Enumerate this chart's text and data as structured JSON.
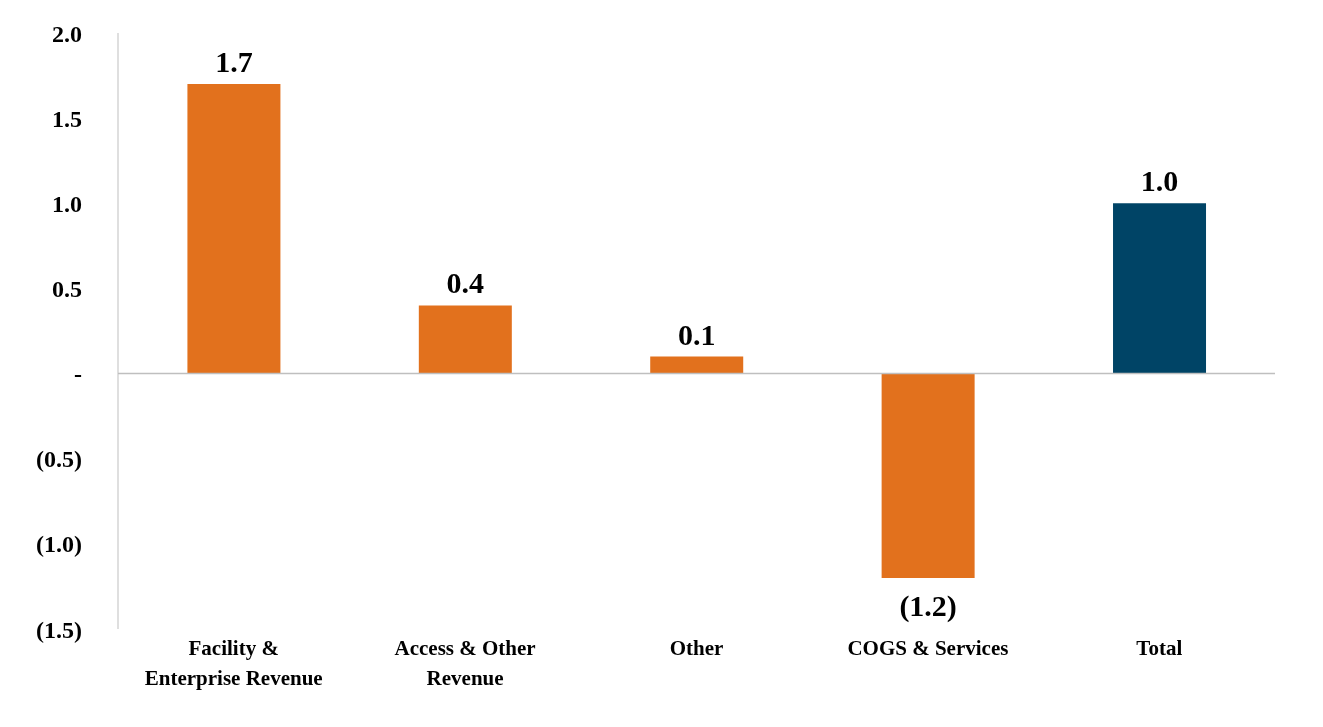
{
  "chart_data": {
    "type": "bar",
    "categories": [
      "Facility & Enterprise Revenue",
      "Access & Other Revenue",
      "Other",
      "COGS & Services",
      "Total"
    ],
    "values": [
      1.7,
      0.4,
      0.1,
      -1.2,
      1.0
    ],
    "colors": [
      "#e2711d",
      "#e2711d",
      "#e2711d",
      "#e2711d",
      "#004466"
    ],
    "value_labels": [
      "1.7",
      "0.4",
      "0.1",
      "(1.2)",
      "1.0"
    ],
    "ylim": [
      -1.5,
      2.0
    ],
    "yticks": [
      {
        "value": -1.5,
        "label": "(1.5)"
      },
      {
        "value": -1,
        "label": "(1.0)"
      },
      {
        "value": -0.5,
        "label": "(0.5)"
      },
      {
        "value": 0,
        "label": "-"
      },
      {
        "value": 0.5,
        "label": "0.5"
      },
      {
        "value": 1,
        "label": "1.0"
      },
      {
        "value": 1.5,
        "label": "1.5"
      },
      {
        "value": 2,
        "label": "2.0"
      }
    ],
    "legend": false
  }
}
